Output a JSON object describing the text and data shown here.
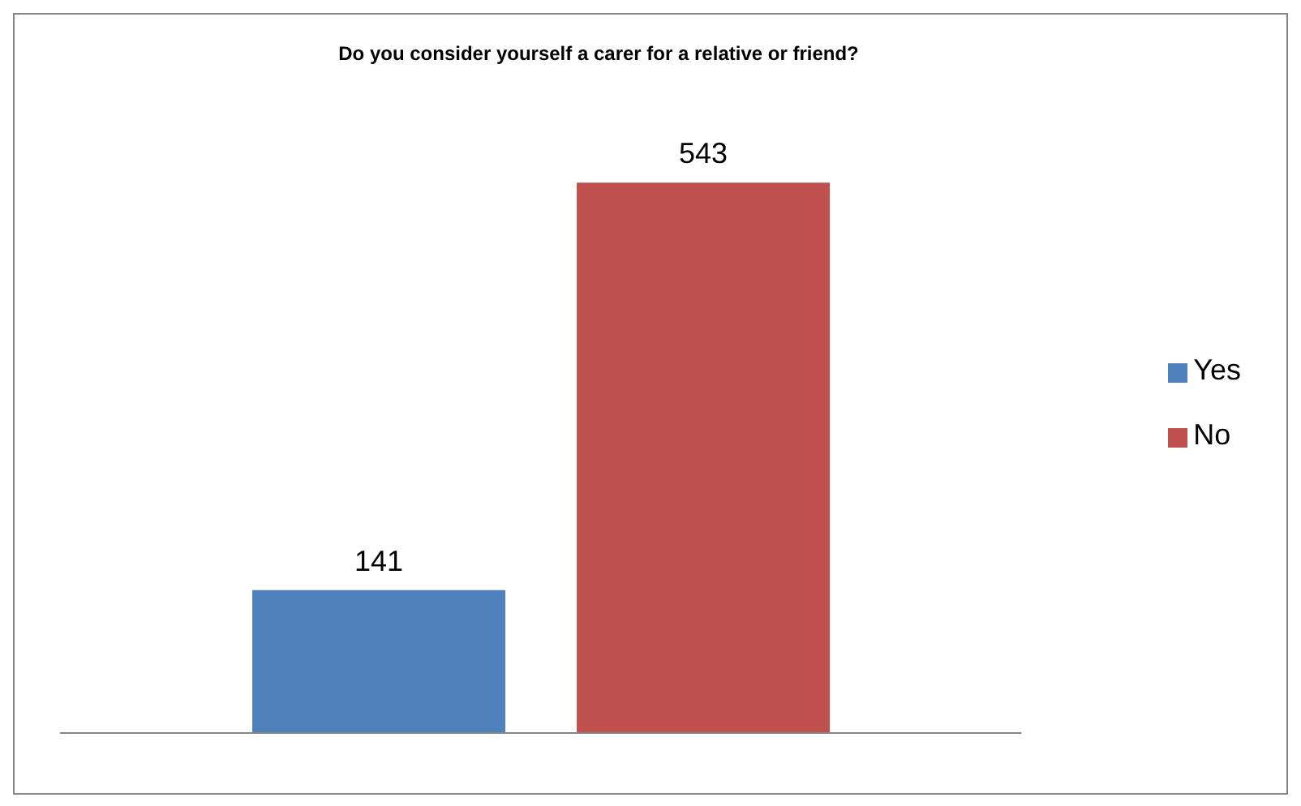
{
  "chart_data": {
    "type": "bar",
    "title": "Do you consider yourself a carer for a relative or friend?",
    "categories": [
      null
    ],
    "series": [
      {
        "name": "Yes",
        "color": "#4f81bd",
        "values": [
          141
        ]
      },
      {
        "name": "No",
        "color": "#c0504d",
        "values": [
          543
        ]
      }
    ],
    "data_labels": true,
    "legend": "right",
    "grid": false
  }
}
